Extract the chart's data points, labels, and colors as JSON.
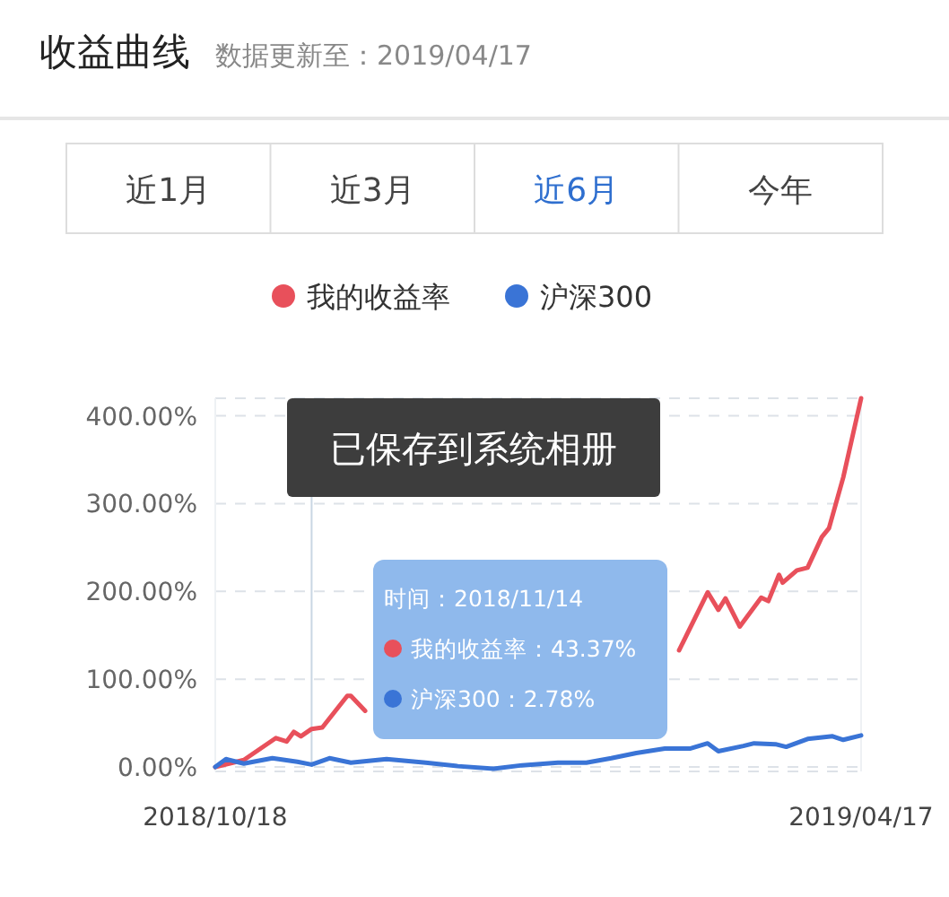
{
  "chart_data": {
    "type": "line",
    "title": "收益曲线",
    "subtitle": "数据更新至：2019/04/17",
    "legend": "top",
    "grid": "y",
    "marker": "none",
    "line_style": "solid",
    "xlim": [
      "2018-10-18",
      "2019-04-17"
    ],
    "xticks": [
      {
        "value": "2018-10-18",
        "label": "2018/10/18"
      },
      {
        "value": "2019-04-17",
        "label": "2019/04/17"
      }
    ],
    "ylim": [
      -5,
      420
    ],
    "yticks": [
      {
        "value": 0,
        "label": "0.00%"
      },
      {
        "value": 100,
        "label": "100.00%"
      },
      {
        "value": 200,
        "label": "200.00%"
      },
      {
        "value": 300,
        "label": "300.00%"
      },
      {
        "value": 400,
        "label": "400.00%"
      }
    ],
    "ref_lines": [
      {
        "axis": "x",
        "value": "2018-11-14",
        "label": null,
        "color": "#c9d6e3"
      }
    ],
    "annotations": [
      "近1月",
      "近3月",
      "近6月",
      "今年",
      "已保存到系统相册",
      "时间：2018/11/14",
      "我的收益率：43.37%",
      "沪深300：2.78%"
    ],
    "series": [
      {
        "name": "我的收益率",
        "color": "#e8505b",
        "x": [
          "2018-10-18",
          "2018-10-26",
          "2018-11-04",
          "2018-11-07",
          "2018-11-09",
          "2018-11-11",
          "2018-11-14",
          "2018-11-17",
          "2018-11-24",
          "2018-11-25",
          "2018-11-29",
          "2019-01-15",
          "2019-02-25",
          "2019-03-05",
          "2019-03-08",
          "2019-03-10",
          "2019-03-14",
          "2019-03-20",
          "2019-03-22",
          "2019-03-25",
          "2019-03-26",
          "2019-03-30",
          "2019-04-02",
          "2019-04-06",
          "2019-04-08",
          "2019-04-12",
          "2019-04-17"
        ],
        "values": [
          0,
          8,
          33,
          29,
          40,
          35,
          43.37,
          45,
          81,
          81,
          64,
          null,
          133,
          199,
          179,
          192,
          160,
          193,
          189,
          219,
          210,
          224,
          227,
          262,
          272,
          330,
          420
        ]
      },
      {
        "name": "沪深300",
        "color": "#3a74d6",
        "x": [
          "2018-10-18",
          "2018-10-21",
          "2018-10-26",
          "2018-11-03",
          "2018-11-10",
          "2018-11-14",
          "2018-11-19",
          "2018-11-25",
          "2018-12-05",
          "2018-12-16",
          "2018-12-25",
          "2019-01-04",
          "2019-01-12",
          "2019-01-22",
          "2019-01-30",
          "2019-02-06",
          "2019-02-13",
          "2019-02-21",
          "2019-02-28",
          "2019-03-05",
          "2019-03-08",
          "2019-03-15",
          "2019-03-18",
          "2019-03-24",
          "2019-03-27",
          "2019-04-02",
          "2019-04-09",
          "2019-04-12",
          "2019-04-17"
        ],
        "values": [
          0,
          9,
          4,
          10,
          6,
          2.78,
          10,
          5,
          9,
          5,
          1,
          -2,
          2,
          5,
          5,
          10,
          16,
          21,
          21,
          27,
          18,
          24,
          27,
          26,
          23,
          32,
          35,
          31,
          36
        ]
      }
    ]
  }
}
